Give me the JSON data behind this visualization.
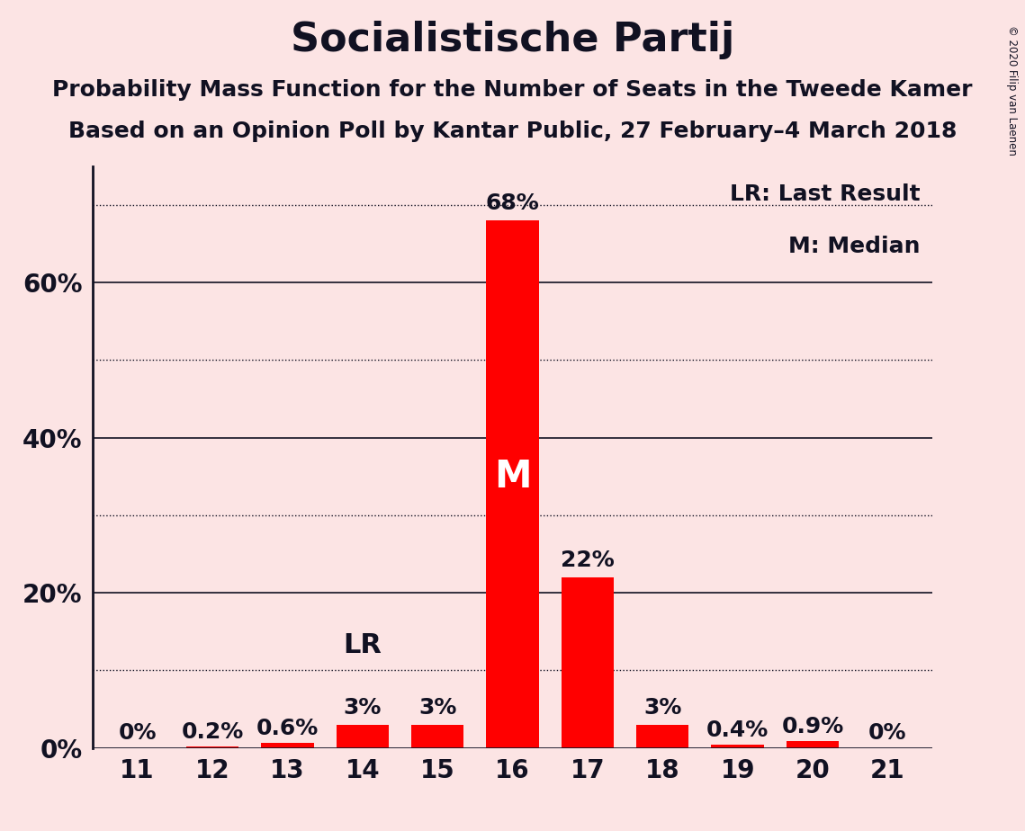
{
  "title": "Socialistische Partij",
  "subtitle1": "Probability Mass Function for the Number of Seats in the Tweede Kamer",
  "subtitle2": "Based on an Opinion Poll by Kantar Public, 27 February–4 March 2018",
  "copyright": "© 2020 Filip van Laenen",
  "legend_lr": "LR: Last Result",
  "legend_m": "M: Median",
  "categories": [
    11,
    12,
    13,
    14,
    15,
    16,
    17,
    18,
    19,
    20,
    21
  ],
  "values": [
    0.0,
    0.2,
    0.6,
    3.0,
    3.0,
    68.0,
    22.0,
    3.0,
    0.4,
    0.9,
    0.0
  ],
  "bar_color": "#ff0000",
  "background_color": "#fce4e4",
  "bar_labels": [
    "0%",
    "0.2%",
    "0.6%",
    "3%",
    "3%",
    "68%",
    "22%",
    "3%",
    "0.4%",
    "0.9%",
    "0%"
  ],
  "lr_seat": 14,
  "median_seat": 16,
  "ylim": [
    0,
    75
  ],
  "solid_yticks": [
    20,
    40,
    60
  ],
  "dotted_yticks": [
    10,
    30,
    50,
    70
  ],
  "ytick_positions": [
    0,
    20,
    40,
    60
  ],
  "ytick_labels": [
    "0%",
    "20%",
    "40%",
    "60%"
  ],
  "title_fontsize": 32,
  "subtitle_fontsize": 18,
  "bar_label_fontsize": 18,
  "axis_label_fontsize": 20,
  "legend_fontsize": 18,
  "median_label_fontsize": 30,
  "lr_label_fontsize": 22
}
